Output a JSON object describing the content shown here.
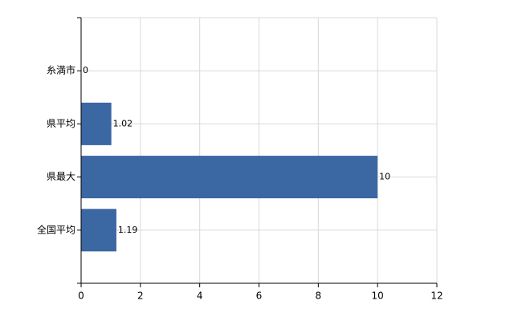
{
  "chart_data": {
    "type": "bar",
    "orientation": "horizontal",
    "categories": [
      "糸満市",
      "県平均",
      "県最大",
      "全国平均"
    ],
    "values": [
      0,
      1.02,
      10,
      1.19
    ],
    "color": "#3b67a3",
    "xlim": [
      0,
      12
    ],
    "xticks": [
      0,
      2,
      4,
      6,
      8,
      10,
      12
    ],
    "grid": true
  }
}
